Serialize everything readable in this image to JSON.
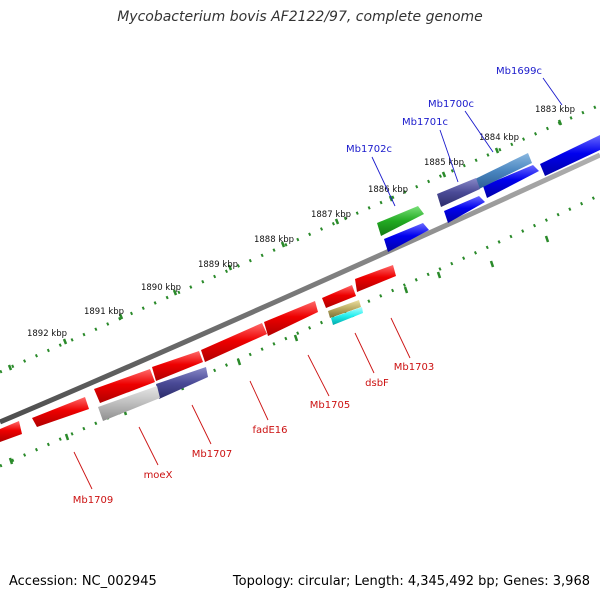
{
  "header": {
    "title": "Mycobacterium bovis AF2122/97, complete genome"
  },
  "footer": {
    "accession": "Accession: NC_002945",
    "summary": "Topology: circular; Length: 4,345,492 bp; Genes: 3,968"
  },
  "colors": {
    "backbone": "#7a7a7a",
    "tick": "#2a8a2a",
    "forward_label": "#1a1acc",
    "reverse_label": "#cc1111"
  },
  "scale_labels": [
    "1883 kbp",
    "1884 kbp",
    "1885 kbp",
    "1886 kbp",
    "1887 kbp",
    "1888 kbp",
    "1889 kbp",
    "1890 kbp",
    "1891 kbp",
    "1892 kbp"
  ],
  "forward_genes": [
    {
      "id": "g-fw-1",
      "label": ""
    },
    {
      "id": "g-fw-2",
      "label": "Mb1699c"
    },
    {
      "id": "g-fw-3",
      "label": "Mb1700c"
    },
    {
      "id": "g-fw-4",
      "label": "Mb1701c"
    },
    {
      "id": "g-fw-5",
      "label": ""
    },
    {
      "id": "g-fw-6",
      "label": "Mb1702c"
    },
    {
      "id": "g-fw-7",
      "label": ""
    }
  ],
  "reverse_genes": [
    {
      "id": "g-rv-1",
      "label": "Mb1703"
    },
    {
      "id": "g-rv-2",
      "label": ""
    },
    {
      "id": "g-rv-3",
      "label": "dsbF"
    },
    {
      "id": "g-rv-4",
      "label": "Mb1705"
    },
    {
      "id": "g-rv-5",
      "label": "fadE16"
    },
    {
      "id": "g-rv-6",
      "label": ""
    },
    {
      "id": "g-rv-7",
      "label": "Mb1707"
    },
    {
      "id": "g-rv-8",
      "label": "moeX"
    },
    {
      "id": "g-rv-9",
      "label": "Mb1709"
    },
    {
      "id": "g-rv-10",
      "label": ""
    }
  ]
}
